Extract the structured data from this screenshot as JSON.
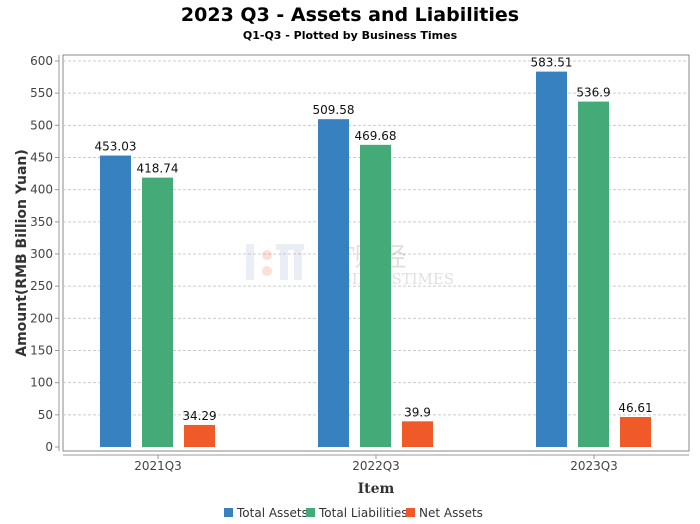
{
  "chart_data": {
    "type": "bar",
    "title": "2023 Q3 - Assets and Liabilities",
    "subtitle": "Q1-Q3 - Plotted by Business Times",
    "xlabel": "Item",
    "ylabel": "Amount(RMB Billion Yuan)",
    "categories": [
      "2021Q3",
      "2022Q3",
      "2023Q3"
    ],
    "series": [
      {
        "name": "Total Assets",
        "values": [
          453.03,
          509.58,
          583.51
        ],
        "color": "#3881c1"
      },
      {
        "name": "Total Liabilities",
        "values": [
          418.74,
          469.68,
          536.9
        ],
        "color": "#44aa77"
      },
      {
        "name": "Net Assets",
        "values": [
          34.29,
          39.9,
          46.61
        ],
        "color": "#f05a28"
      }
    ],
    "ylim": [
      0,
      600
    ],
    "yticks": [
      0,
      50,
      100,
      150,
      200,
      250,
      300,
      350,
      400,
      450,
      500,
      550,
      600
    ],
    "grid": true,
    "legend": "bottom",
    "watermark": {
      "text_cn": "BT财经",
      "text_en": "BUSINESSTIMES"
    }
  }
}
